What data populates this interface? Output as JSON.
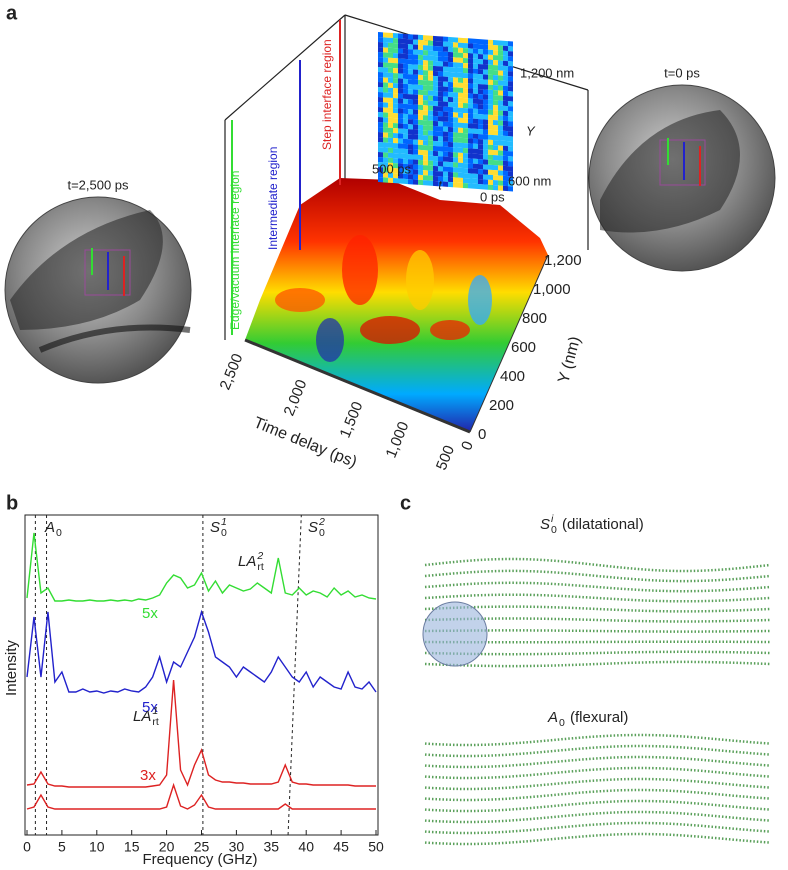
{
  "panels": {
    "a": {
      "label": "a",
      "left_time": "t=2,500 ps",
      "right_time": "t=0 ps",
      "regions": [
        "Edge/vacuum interface region",
        "Intermediate region",
        "Step interface region"
      ],
      "time_axis_title": "Time delay (ps)",
      "time_ticks": [
        "2,500",
        "2,000",
        "1,500",
        "1,000",
        "500",
        "0"
      ],
      "y_axis_title": "Y (nm)",
      "y_ticks": [
        "0",
        "200",
        "400",
        "600",
        "800",
        "1,000",
        "1,200"
      ],
      "inset": {
        "y_top": "1,200 nm",
        "y_label": "Y",
        "y_bottom": "600 nm",
        "t_left": "500 ps",
        "t_label": "t",
        "t_right": "0 ps"
      }
    },
    "c": {
      "label": "c",
      "top_title": {
        "base": "S",
        "sub": "0",
        "sup": "i",
        "text": " (dilatational)"
      },
      "bottom_title": {
        "base": "A",
        "sub": "0",
        "text": " (flexural)"
      }
    }
  },
  "chart_data": {
    "type": "line",
    "label": "b",
    "x": [
      0,
      1,
      2,
      3,
      4,
      5,
      6,
      7,
      8,
      9,
      10,
      11,
      12,
      13,
      14,
      15,
      16,
      17,
      18,
      19,
      20,
      21,
      22,
      23,
      24,
      25,
      26,
      27,
      28,
      29,
      30,
      31,
      32,
      33,
      34,
      35,
      36,
      37,
      38,
      39,
      40,
      41,
      42,
      43,
      44,
      45,
      46,
      47,
      48,
      49,
      50
    ],
    "series": [
      {
        "color": "#33dd33",
        "values": [
          5,
          70,
          10,
          15,
          2,
          2,
          3,
          2,
          2,
          3,
          2,
          2,
          3,
          2,
          3,
          2,
          4,
          3,
          5,
          8,
          20,
          28,
          25,
          15,
          18,
          30,
          12,
          22,
          10,
          18,
          15,
          12,
          14,
          20,
          15,
          10,
          45,
          10,
          8,
          15,
          8,
          12,
          10,
          6,
          15,
          8,
          12,
          6,
          8,
          5,
          4
        ]
      },
      {
        "color": "#2222cc",
        "values": [
          20,
          80,
          20,
          85,
          15,
          25,
          5,
          5,
          8,
          5,
          6,
          4,
          6,
          5,
          8,
          6,
          5,
          10,
          20,
          40,
          15,
          35,
          30,
          45,
          60,
          85,
          65,
          40,
          35,
          30,
          20,
          30,
          25,
          20,
          15,
          25,
          40,
          30,
          20,
          15,
          25,
          10,
          20,
          15,
          10,
          8,
          25,
          10,
          8,
          15,
          5
        ]
      },
      {
        "color": "#dd2222",
        "values": [
          5,
          6,
          18,
          6,
          4,
          4,
          3,
          3,
          3,
          3,
          3,
          3,
          3,
          3,
          3,
          3,
          3,
          3,
          4,
          5,
          15,
          110,
          20,
          5,
          25,
          40,
          15,
          10,
          8,
          8,
          7,
          7,
          6,
          6,
          6,
          6,
          8,
          25,
          8,
          6,
          6,
          5,
          5,
          5,
          5,
          5,
          5,
          4,
          4,
          4,
          4
        ]
      },
      {
        "color": "#dd2222",
        "values": [
          1,
          3,
          15,
          3,
          1,
          1,
          1,
          1,
          1,
          1,
          1,
          1,
          1,
          1,
          1,
          1,
          1,
          1,
          1,
          1,
          3,
          25,
          4,
          1,
          5,
          15,
          3,
          1,
          1,
          1,
          1,
          1,
          1,
          1,
          1,
          1,
          1,
          6,
          1,
          1,
          1,
          1,
          1,
          1,
          1,
          1,
          1,
          1,
          1,
          1,
          1
        ]
      }
    ],
    "xlim": [
      0,
      50
    ],
    "xticks": [
      0,
      5,
      10,
      15,
      20,
      25,
      30,
      35,
      40,
      45,
      50
    ],
    "xlabel": "Frequency (GHz)",
    "ylabel": "Intensity",
    "multipliers": [
      "5x",
      "5x",
      "3x"
    ],
    "vlines": [
      1.2,
      2.8,
      25.2
    ],
    "slanted_line": [
      37.4,
      39.3
    ],
    "mode_labels": [
      {
        "base": "A",
        "sub": "0"
      },
      {
        "base": "S",
        "sub": "0",
        "sup": "1"
      },
      {
        "base": "S",
        "sub": "0",
        "sup": "2"
      },
      {
        "base": "LA",
        "sub": "rt",
        "sup": "2"
      },
      {
        "base": "LA",
        "sub": "rt",
        "sup": "1"
      }
    ]
  }
}
